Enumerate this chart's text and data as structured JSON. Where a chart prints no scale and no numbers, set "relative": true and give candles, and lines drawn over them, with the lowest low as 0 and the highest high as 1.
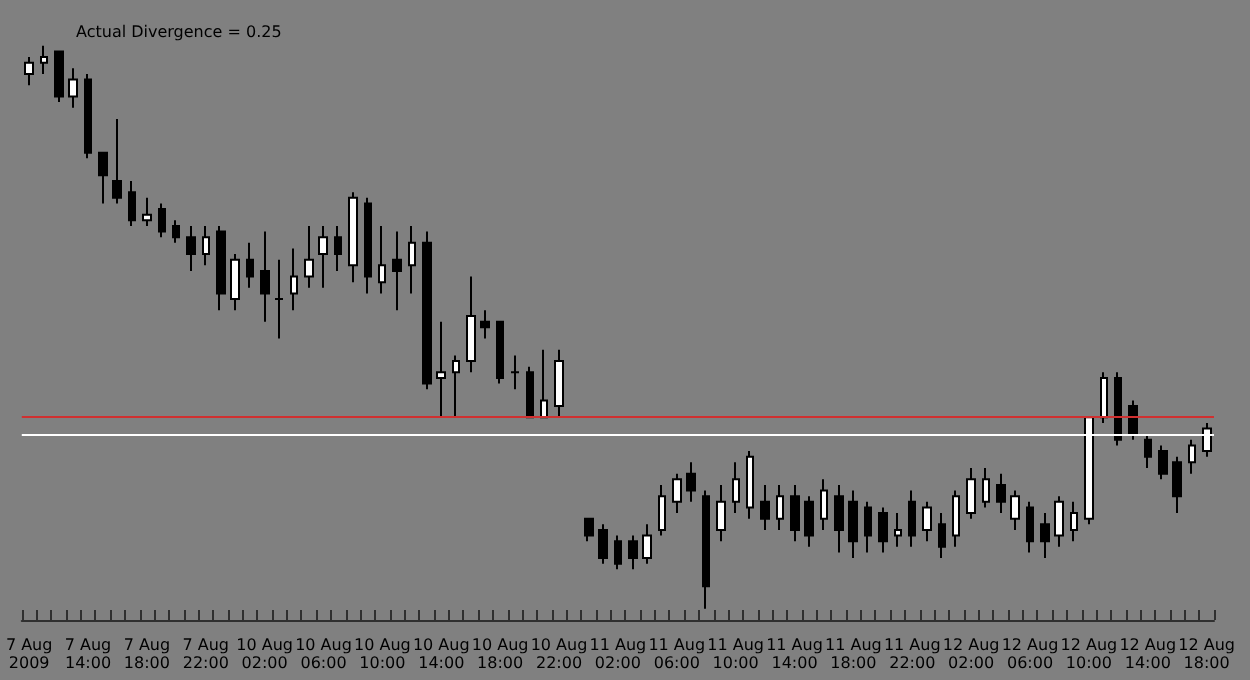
{
  "chart_data": {
    "type": "candlestick",
    "relative": true,
    "color": "#000000",
    "grid": false,
    "annotations": [
      "Actual Divergence = 0.25"
    ],
    "categories": [
      "7 Aug 2009",
      null,
      null,
      null,
      "7 Aug 14:00",
      null,
      null,
      null,
      "7 Aug 18:00",
      null,
      null,
      null,
      "7 Aug 22:00",
      null,
      null,
      null,
      "10 Aug 02:00",
      null,
      null,
      null,
      "10 Aug 06:00",
      null,
      null,
      null,
      "10 Aug 10:00",
      null,
      null,
      null,
      "10 Aug 14:00",
      null,
      null,
      null,
      "10 Aug 18:00",
      null,
      null,
      null,
      "10 Aug 22:00",
      null,
      null,
      null,
      "11 Aug 02:00",
      null,
      null,
      null,
      "11 Aug 06:00",
      null,
      null,
      null,
      "11 Aug 10:00",
      null,
      null,
      null,
      "11 Aug 14:00",
      null,
      null,
      null,
      "11 Aug 18:00",
      null,
      null,
      null,
      "11 Aug 22:00",
      null,
      null,
      null,
      "12 Aug 02:00",
      null,
      null,
      null,
      "12 Aug 06:00",
      null,
      null,
      null,
      "12 Aug 10:00",
      null,
      null,
      null,
      "12 Aug 14:00",
      null,
      null,
      null,
      "12 Aug 18:00"
    ],
    "ohlc": [
      [
        0.95,
        0.98,
        0.93,
        0.97
      ],
      [
        0.97,
        1.0,
        0.95,
        0.98
      ],
      [
        0.99,
        0.99,
        0.9,
        0.91
      ],
      [
        0.91,
        0.96,
        0.89,
        0.94
      ],
      [
        0.94,
        0.95,
        0.8,
        0.81
      ],
      [
        0.81,
        0.81,
        0.72,
        0.77
      ],
      [
        0.76,
        0.87,
        0.72,
        0.73
      ],
      [
        0.74,
        0.76,
        0.68,
        0.69
      ],
      [
        0.69,
        0.73,
        0.68,
        0.7
      ],
      [
        0.71,
        0.72,
        0.66,
        0.67
      ],
      [
        0.68,
        0.69,
        0.65,
        0.66
      ],
      [
        0.66,
        0.68,
        0.6,
        0.63
      ],
      [
        0.63,
        0.68,
        0.61,
        0.66
      ],
      [
        0.67,
        0.68,
        0.53,
        0.56
      ],
      [
        0.55,
        0.63,
        0.53,
        0.62
      ],
      [
        0.62,
        0.65,
        0.57,
        0.59
      ],
      [
        0.6,
        0.67,
        0.51,
        0.56
      ],
      [
        0.55,
        0.62,
        0.48,
        0.55
      ],
      [
        0.56,
        0.64,
        0.53,
        0.59
      ],
      [
        0.59,
        0.68,
        0.57,
        0.62
      ],
      [
        0.63,
        0.68,
        0.57,
        0.66
      ],
      [
        0.66,
        0.68,
        0.6,
        0.63
      ],
      [
        0.61,
        0.74,
        0.58,
        0.73
      ],
      [
        0.72,
        0.73,
        0.56,
        0.59
      ],
      [
        0.58,
        0.68,
        0.56,
        0.61
      ],
      [
        0.62,
        0.67,
        0.53,
        0.6
      ],
      [
        0.61,
        0.68,
        0.56,
        0.65
      ],
      [
        0.65,
        0.67,
        0.39,
        0.4
      ],
      [
        0.41,
        0.51,
        0.34,
        0.42
      ],
      [
        0.42,
        0.45,
        0.34,
        0.44
      ],
      [
        0.44,
        0.59,
        0.42,
        0.52
      ],
      [
        0.51,
        0.53,
        0.48,
        0.5
      ],
      [
        0.51,
        0.51,
        0.4,
        0.41
      ],
      [
        0.42,
        0.45,
        0.39,
        0.42
      ],
      [
        0.42,
        0.43,
        0.34,
        0.34
      ],
      [
        0.34,
        0.46,
        0.34,
        0.37
      ],
      [
        0.36,
        0.46,
        0.34,
        0.44
      ],
      null,
      [
        0.16,
        0.16,
        0.12,
        0.13
      ],
      [
        0.14,
        0.15,
        0.08,
        0.09
      ],
      [
        0.12,
        0.13,
        0.07,
        0.08
      ],
      [
        0.12,
        0.13,
        0.07,
        0.09
      ],
      [
        0.09,
        0.15,
        0.08,
        0.13
      ],
      [
        0.14,
        0.22,
        0.13,
        0.2
      ],
      [
        0.19,
        0.24,
        0.17,
        0.23
      ],
      [
        0.24,
        0.26,
        0.19,
        0.21
      ],
      [
        0.2,
        0.21,
        0.0,
        0.04
      ],
      [
        0.14,
        0.22,
        0.12,
        0.19
      ],
      [
        0.19,
        0.26,
        0.17,
        0.23
      ],
      [
        0.18,
        0.28,
        0.16,
        0.27
      ],
      [
        0.19,
        0.22,
        0.14,
        0.16
      ],
      [
        0.16,
        0.22,
        0.14,
        0.2
      ],
      [
        0.2,
        0.22,
        0.12,
        0.14
      ],
      [
        0.19,
        0.2,
        0.11,
        0.13
      ],
      [
        0.16,
        0.23,
        0.14,
        0.21
      ],
      [
        0.2,
        0.22,
        0.1,
        0.14
      ],
      [
        0.19,
        0.21,
        0.09,
        0.12
      ],
      [
        0.18,
        0.19,
        0.1,
        0.13
      ],
      [
        0.17,
        0.18,
        0.1,
        0.12
      ],
      [
        0.13,
        0.17,
        0.11,
        0.14
      ],
      [
        0.19,
        0.21,
        0.11,
        0.13
      ],
      [
        0.14,
        0.19,
        0.12,
        0.18
      ],
      [
        0.15,
        0.17,
        0.09,
        0.11
      ],
      [
        0.13,
        0.21,
        0.11,
        0.2
      ],
      [
        0.17,
        0.25,
        0.16,
        0.23
      ],
      [
        0.19,
        0.25,
        0.18,
        0.23
      ],
      [
        0.22,
        0.24,
        0.17,
        0.19
      ],
      [
        0.16,
        0.21,
        0.14,
        0.2
      ],
      [
        0.18,
        0.19,
        0.1,
        0.12
      ],
      [
        0.15,
        0.17,
        0.09,
        0.12
      ],
      [
        0.13,
        0.2,
        0.11,
        0.19
      ],
      [
        0.14,
        0.19,
        0.12,
        0.17
      ],
      [
        0.16,
        0.34,
        0.15,
        0.34
      ],
      [
        0.34,
        0.42,
        0.33,
        0.41
      ],
      [
        0.41,
        0.42,
        0.29,
        0.3
      ],
      [
        0.36,
        0.37,
        0.3,
        0.31
      ],
      [
        0.3,
        0.31,
        0.25,
        0.27
      ],
      [
        0.28,
        0.29,
        0.23,
        0.24
      ],
      [
        0.26,
        0.27,
        0.17,
        0.2
      ],
      [
        0.26,
        0.3,
        0.24,
        0.29
      ],
      [
        0.28,
        0.33,
        0.27,
        0.32
      ]
    ],
    "ref_lines": [
      {
        "axis": "y",
        "value": 0.34,
        "color": "#d03030"
      },
      {
        "axis": "y",
        "value": 0.31,
        "color": "#ffffff"
      }
    ]
  }
}
